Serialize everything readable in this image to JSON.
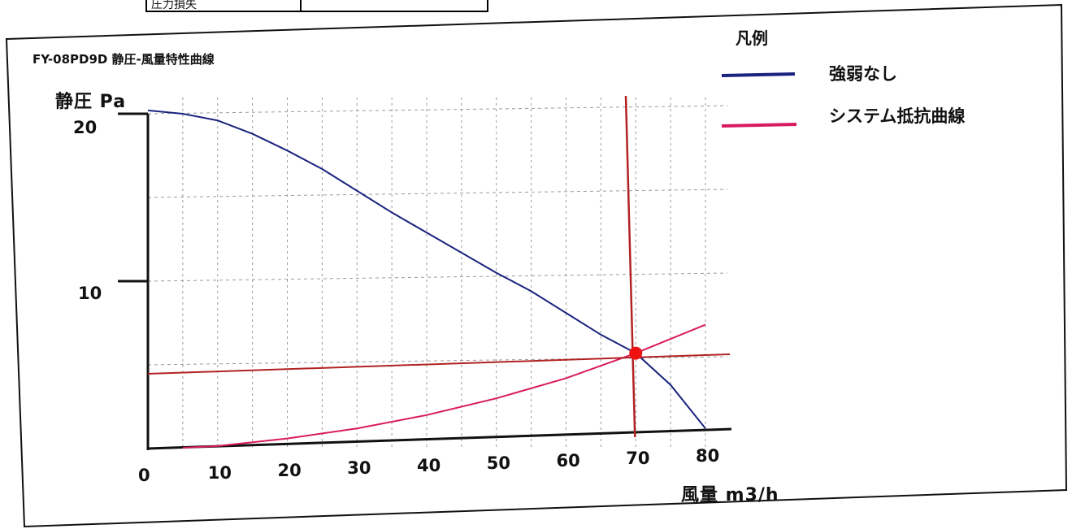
{
  "header_fragment": "圧力損失",
  "chart_data": {
    "type": "line",
    "title": "FY-08PD9D  静圧-風量特性曲線",
    "xlabel": "風量 m3/h",
    "ylabel": "静圧 Pa",
    "xlim": [
      0,
      80
    ],
    "ylim": [
      0,
      20
    ],
    "x_ticks": [
      "0",
      "10",
      "20",
      "30",
      "40",
      "50",
      "60",
      "70",
      "80"
    ],
    "y_ticks": [
      "10",
      "20"
    ],
    "grid": true,
    "legend": {
      "heading": "凡例",
      "position": "top-right"
    },
    "series": [
      {
        "name": "強弱なし",
        "color": "#1a237e",
        "x": [
          0,
          5,
          10,
          15,
          20,
          25,
          30,
          35,
          40,
          45,
          50,
          55,
          60,
          65,
          70,
          75,
          80
        ],
        "y": [
          20.2,
          20.0,
          19.6,
          18.8,
          17.8,
          16.7,
          15.4,
          14.1,
          12.9,
          11.7,
          10.5,
          9.4,
          8.1,
          6.8,
          5.7,
          3.8,
          1.2
        ]
      },
      {
        "name": "システム抵抗曲線",
        "color": "#d81b60",
        "x": [
          5,
          10,
          20,
          30,
          40,
          50,
          60,
          70,
          80
        ],
        "y": [
          0.05,
          0.15,
          0.6,
          1.2,
          2.0,
          3.0,
          4.2,
          5.7,
          7.4
        ]
      }
    ],
    "annotations": {
      "operating_point": {
        "x": 70,
        "y": 5.7,
        "color": "#ee1111"
      },
      "reference_line_color": "#b22222"
    }
  }
}
